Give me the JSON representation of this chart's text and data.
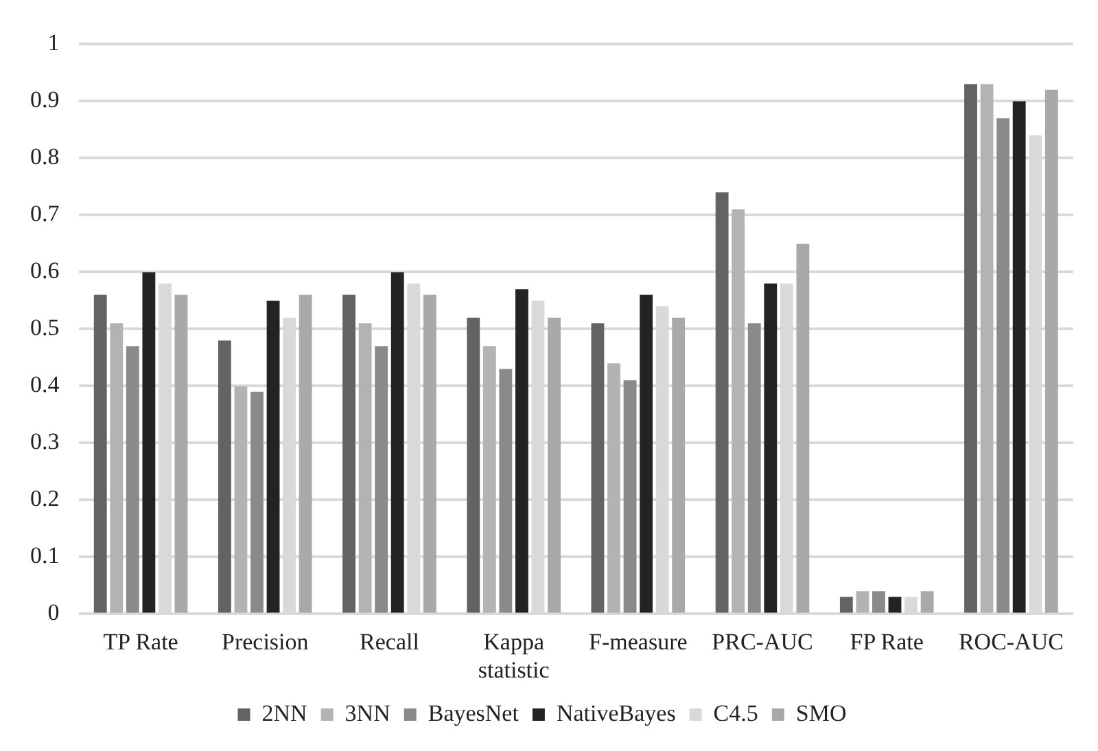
{
  "chart_data": {
    "type": "bar",
    "categories": [
      "TP Rate",
      "Precision",
      "Recall",
      "Kappa statistic",
      "F-measure",
      "PRC-AUC",
      "FP Rate",
      "ROC-AUC"
    ],
    "series": [
      {
        "name": "2NN",
        "color": "#636363",
        "values": [
          0.56,
          0.48,
          0.56,
          0.52,
          0.51,
          0.74,
          0.03,
          0.93
        ]
      },
      {
        "name": "3NN",
        "color": "#b3b3b3",
        "values": [
          0.51,
          0.4,
          0.51,
          0.47,
          0.44,
          0.71,
          0.04,
          0.93
        ]
      },
      {
        "name": "BayesNet",
        "color": "#8a8a8a",
        "values": [
          0.47,
          0.39,
          0.47,
          0.43,
          0.41,
          0.51,
          0.04,
          0.87
        ]
      },
      {
        "name": "NativeBayes",
        "color": "#232323",
        "values": [
          0.6,
          0.55,
          0.6,
          0.57,
          0.56,
          0.58,
          0.03,
          0.9
        ]
      },
      {
        "name": "C4.5",
        "color": "#d9d9d9",
        "values": [
          0.58,
          0.52,
          0.58,
          0.55,
          0.54,
          0.58,
          0.03,
          0.84
        ]
      },
      {
        "name": "SMO",
        "color": "#a9a9a9",
        "values": [
          0.56,
          0.56,
          0.56,
          0.52,
          0.52,
          0.65,
          0.04,
          0.92
        ]
      }
    ],
    "ylim": [
      0,
      1
    ],
    "yticks": [
      0,
      0.1,
      0.2,
      0.3,
      0.4,
      0.5,
      0.6,
      0.7,
      0.8,
      0.9,
      1
    ],
    "grid": "y",
    "legend": "bottom"
  }
}
